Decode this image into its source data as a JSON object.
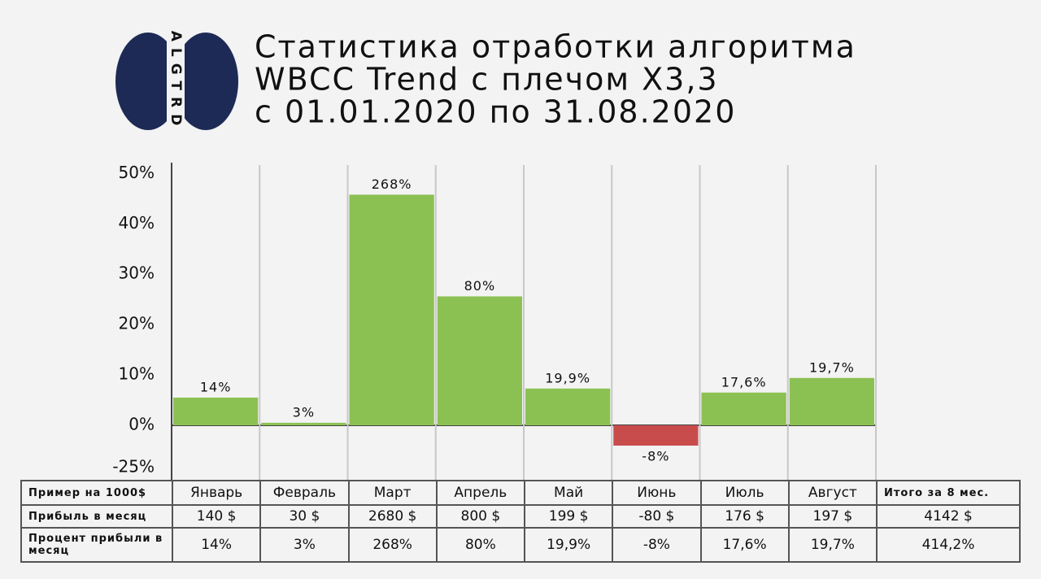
{
  "logo_text": "ALGTRD",
  "chart_data": {
    "type": "bar",
    "title": [
      "Статистика отработки алгоритма",
      "WBCC Trend с плечом X3,3",
      "с 01.01.2020 по 31.08.2020"
    ],
    "categories": [
      "Январь",
      "Февраль",
      "Март",
      "Апрель",
      "Май",
      "Июнь",
      "Июль",
      "Август"
    ],
    "values": [
      5.5,
      0.5,
      45.8,
      25.6,
      7.3,
      -12,
      6.5,
      9.4
    ],
    "colors": {
      "positive": "#8bc152",
      "negative": "#c94c4c"
    },
    "ylim": [
      -25,
      52
    ],
    "yticks": [
      {
        "value": 50,
        "label": "50%"
      },
      {
        "value": 40,
        "label": "40%"
      },
      {
        "value": 30,
        "label": "30%"
      },
      {
        "value": 20,
        "label": "20%"
      },
      {
        "value": 10,
        "label": "10%"
      },
      {
        "value": 0,
        "label": "0%"
      },
      {
        "value": -25,
        "label": "-25%"
      }
    ],
    "grid": true
  },
  "table": {
    "header_label": "Пример на 1000$",
    "total_header": "Итого за 8 мес.",
    "rows": [
      {
        "label": "Прибыль в месяц",
        "cells": [
          "140 $",
          "30 $",
          "2680 $",
          "800 $",
          "199 $",
          "-80 $",
          "176 $",
          "197 $"
        ],
        "total": "4142 $"
      },
      {
        "label": "Процент прибыли в месяц",
        "cells": [
          "14%",
          "3%",
          "268%",
          "80%",
          "19,9%",
          "-8%",
          "17,6%",
          "19,7%"
        ],
        "total": "414,2%"
      }
    ]
  }
}
